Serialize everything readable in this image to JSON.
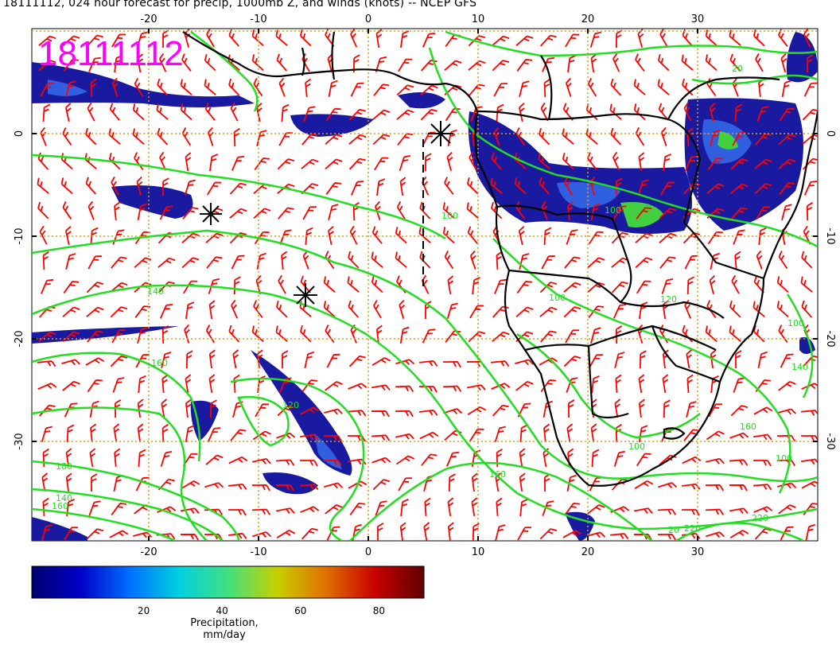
{
  "header": {
    "title": "18111112, 024 hour forecast for precip, 1000mb Z, and winds (knots) -- NCEP GFS"
  },
  "map": {
    "stamp": "18111112",
    "stamp_color": "#ff00ff",
    "lon_ticks": [
      "-20",
      "-10",
      "0",
      "10",
      "20",
      "30"
    ],
    "lat_ticks": [
      "0",
      "-10",
      "-20",
      "-30"
    ],
    "contour_labels": [
      "160",
      "140",
      "120",
      "100",
      "100",
      "100",
      "140",
      "160",
      "180",
      "220",
      "220",
      "160",
      "100",
      "120",
      "20",
      "160",
      "20",
      "100",
      "140",
      "100"
    ],
    "colors": {
      "barb": "#ff0000",
      "contour": "#22dd22",
      "coast": "#000000",
      "grid": "#d4a017",
      "precip_dark": "#1a1aa0",
      "precip_mid": "#3060e0",
      "precip_high": "#40d040"
    }
  },
  "colorbar": {
    "ticks": [
      "20",
      "40",
      "60",
      "80"
    ],
    "label": "Precipitation, mm/day",
    "colors": [
      "#000070",
      "#0000c8",
      "#0070ff",
      "#00d0e0",
      "#40e080",
      "#c8d000",
      "#e07000",
      "#c80000",
      "#600000"
    ]
  }
}
